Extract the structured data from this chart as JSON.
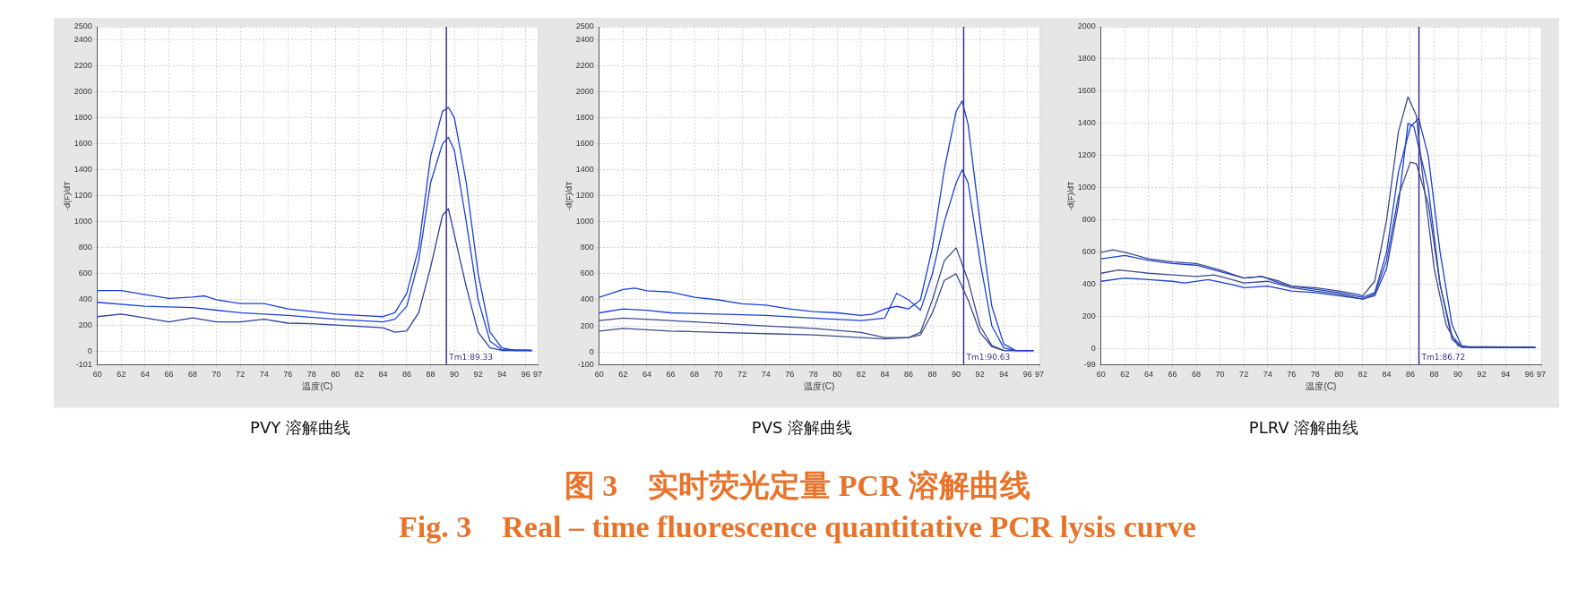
{
  "chart_data": [
    {
      "type": "line",
      "title": "PVY 溶解曲线",
      "xlabel": "温度(C)",
      "ylabel": "-d(F)/dT",
      "xlim": [
        60,
        97
      ],
      "xticks": [
        60,
        62,
        64,
        66,
        68,
        70,
        72,
        74,
        76,
        78,
        80,
        82,
        84,
        86,
        88,
        90,
        92,
        94,
        96,
        97
      ],
      "ylim": [
        -101,
        2500
      ],
      "yticks": [
        -101,
        0,
        200,
        400,
        600,
        800,
        1000,
        1200,
        1400,
        1600,
        1800,
        2000,
        2200,
        2400,
        2500
      ],
      "grid": true,
      "legend": false,
      "marker": "none",
      "line_style": "solid",
      "ref_lines": [
        {
          "axis": "x",
          "value": 89.33,
          "label": "Tm1:89.33",
          "color": "#3b2f8f"
        }
      ],
      "series": [
        {
          "color": "#1a3fd8",
          "x": [
            60,
            62,
            64,
            66,
            68,
            69,
            70,
            72,
            74,
            76,
            78,
            80,
            82,
            84,
            85,
            86,
            87,
            88,
            89,
            89.5,
            90,
            91,
            92,
            93,
            94,
            95,
            96.5
          ],
          "values": [
            470,
            470,
            440,
            410,
            420,
            430,
            400,
            370,
            370,
            330,
            310,
            290,
            280,
            270,
            300,
            450,
            800,
            1500,
            1850,
            1880,
            1800,
            1300,
            600,
            150,
            30,
            10,
            10
          ]
        },
        {
          "color": "#1a3fd8",
          "x": [
            60,
            64,
            68,
            70,
            72,
            76,
            80,
            84,
            85,
            86,
            87,
            88,
            89,
            89.5,
            90,
            91,
            92,
            93,
            94,
            96.5
          ],
          "values": [
            380,
            350,
            340,
            320,
            300,
            280,
            250,
            230,
            250,
            350,
            700,
            1300,
            1600,
            1650,
            1550,
            1000,
            400,
            80,
            15,
            10
          ]
        },
        {
          "color": "#2a3f9a",
          "x": [
            60,
            62,
            64,
            66,
            68,
            70,
            72,
            74,
            76,
            78,
            80,
            82,
            84,
            85,
            86,
            87,
            88,
            89,
            89.5,
            90,
            91,
            92,
            93,
            94,
            96.5
          ],
          "values": [
            270,
            290,
            260,
            230,
            260,
            230,
            230,
            250,
            220,
            215,
            205,
            195,
            185,
            150,
            160,
            300,
            650,
            1050,
            1100,
            900,
            500,
            150,
            30,
            10,
            10
          ]
        }
      ]
    },
    {
      "type": "line",
      "title": "PVS 溶解曲线",
      "xlabel": "温度(C)",
      "ylabel": "-d(F)/dT",
      "xlim": [
        60,
        97
      ],
      "xticks": [
        60,
        62,
        64,
        66,
        68,
        70,
        72,
        74,
        76,
        78,
        80,
        82,
        84,
        86,
        88,
        90,
        92,
        94,
        96,
        97
      ],
      "ylim": [
        -100,
        2500
      ],
      "yticks": [
        -100,
        0,
        200,
        400,
        600,
        800,
        1000,
        1200,
        1400,
        1600,
        1800,
        2000,
        2200,
        2400,
        2500
      ],
      "grid": true,
      "legend": false,
      "marker": "none",
      "line_style": "solid",
      "ref_lines": [
        {
          "axis": "x",
          "value": 90.63,
          "label": "Tm1:90.63",
          "color": "#3b2f8f"
        }
      ],
      "series": [
        {
          "color": "#1a3fd8",
          "x": [
            60,
            62,
            63,
            64,
            66,
            68,
            70,
            72,
            74,
            76,
            78,
            80,
            82,
            83,
            84,
            85,
            86,
            87,
            88,
            89,
            90,
            90.5,
            91,
            92,
            93,
            94,
            95,
            96.5
          ],
          "values": [
            420,
            480,
            490,
            470,
            460,
            420,
            400,
            370,
            360,
            330,
            310,
            300,
            280,
            290,
            330,
            350,
            330,
            400,
            800,
            1400,
            1850,
            1930,
            1750,
            1000,
            350,
            60,
            10,
            10
          ]
        },
        {
          "color": "#1a3fd8",
          "x": [
            60,
            62,
            64,
            66,
            70,
            74,
            78,
            82,
            84,
            85,
            86,
            87,
            88,
            89,
            90,
            90.5,
            91,
            92,
            93,
            94,
            95,
            96.5
          ],
          "values": [
            300,
            330,
            320,
            300,
            290,
            280,
            260,
            240,
            260,
            450,
            400,
            320,
            600,
            1000,
            1300,
            1400,
            1300,
            700,
            200,
            30,
            10,
            10
          ]
        },
        {
          "color": "#3a4a8a",
          "x": [
            60,
            62,
            66,
            70,
            74,
            78,
            82,
            84,
            86,
            87,
            88,
            89,
            90,
            91,
            92,
            93,
            94,
            96.5
          ],
          "values": [
            240,
            260,
            240,
            220,
            200,
            180,
            150,
            110,
            110,
            130,
            300,
            550,
            600,
            400,
            150,
            40,
            10,
            10
          ]
        },
        {
          "color": "#3a4a8a",
          "x": [
            60,
            62,
            66,
            70,
            74,
            78,
            82,
            84,
            86,
            87,
            88,
            89,
            90,
            91,
            92,
            93,
            94,
            96.5
          ],
          "values": [
            160,
            180,
            160,
            150,
            140,
            130,
            110,
            100,
            110,
            150,
            400,
            700,
            800,
            550,
            200,
            50,
            10,
            10
          ]
        }
      ]
    },
    {
      "type": "line",
      "title": "PLRV 溶解曲线",
      "xlabel": "温度(C)",
      "ylabel": "-d(F)/dT",
      "xlim": [
        60,
        97
      ],
      "xticks": [
        60,
        62,
        64,
        66,
        68,
        70,
        72,
        74,
        76,
        78,
        80,
        82,
        84,
        86,
        88,
        90,
        92,
        94,
        96,
        97
      ],
      "ylim": [
        -99,
        2000
      ],
      "yticks": [
        -99,
        0,
        200,
        400,
        600,
        800,
        1000,
        1200,
        1400,
        1600,
        1800,
        2000
      ],
      "grid": true,
      "legend": false,
      "marker": "none",
      "line_style": "solid",
      "ref_lines": [
        {
          "axis": "x",
          "value": 86.72,
          "label": "Tm1:86.72",
          "color": "#3b2f8f"
        }
      ],
      "series": [
        {
          "color": "#3a4a8a",
          "x": [
            60,
            61,
            62,
            64,
            66,
            68,
            70,
            72,
            73.5,
            75,
            76,
            78,
            80,
            81.5,
            82,
            83,
            84,
            85,
            85.8,
            86.5,
            87,
            88,
            89,
            90,
            91,
            96.5
          ],
          "values": [
            600,
            615,
            600,
            560,
            540,
            530,
            490,
            440,
            450,
            420,
            390,
            380,
            360,
            340,
            330,
            420,
            800,
            1350,
            1565,
            1450,
            1100,
            500,
            150,
            20,
            10,
            10
          ]
        },
        {
          "color": "#1a3fd8",
          "x": [
            60,
            62,
            64,
            66,
            68,
            70,
            72,
            73.5,
            75,
            76,
            78,
            80,
            82,
            83,
            84,
            85,
            86,
            86.7,
            87.5,
            88.5,
            89.5,
            90.3,
            91,
            96.5
          ],
          "values": [
            560,
            580,
            550,
            530,
            520,
            480,
            440,
            450,
            410,
            390,
            370,
            350,
            320,
            350,
            600,
            1100,
            1380,
            1430,
            1200,
            600,
            150,
            20,
            10,
            10
          ]
        },
        {
          "color": "#3a4a8a",
          "x": [
            60,
            61.5,
            64,
            66,
            68,
            69.5,
            71,
            72,
            74,
            76,
            78,
            80,
            82,
            83,
            84,
            85,
            86,
            86.5,
            87.5,
            88.5,
            89.5,
            90.3,
            96.5
          ],
          "values": [
            470,
            490,
            470,
            460,
            450,
            460,
            430,
            410,
            420,
            380,
            360,
            340,
            310,
            340,
            550,
            950,
            1160,
            1150,
            900,
            400,
            80,
            15,
            10
          ]
        },
        {
          "color": "#1a3fd8",
          "x": [
            60,
            62,
            64,
            66,
            67,
            69,
            71,
            72,
            74,
            76,
            78,
            80,
            82,
            83,
            84,
            85,
            85.8,
            86.3,
            87.5,
            88.5,
            89.5,
            90.3,
            96.5
          ],
          "values": [
            420,
            440,
            430,
            420,
            410,
            430,
            400,
            380,
            390,
            360,
            350,
            330,
            310,
            330,
            500,
            900,
            1400,
            1380,
            1000,
            400,
            60,
            10,
            10
          ]
        }
      ]
    },
    {
      "type": "other",
      "title": "图 3　实时荧光定量 PCR 溶解曲线",
      "subtitle": "Fig. 3　Real – time fluorescence quantitative PCR lysis curve"
    }
  ]
}
